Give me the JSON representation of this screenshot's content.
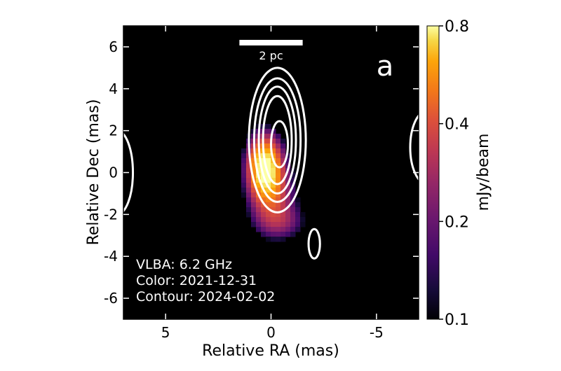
{
  "chart_data": {
    "type": "heatmap",
    "xlabel": "Relative RA (mas)",
    "ylabel": "Relative Dec (mas)",
    "xlim": [
      7,
      -7
    ],
    "ylim": [
      -7,
      7
    ],
    "x_ticks": [
      5,
      0,
      -5
    ],
    "x_tick_labels": [
      "5",
      "0",
      "-5"
    ],
    "y_ticks": [
      6,
      4,
      2,
      0,
      -2,
      -4,
      -6
    ],
    "y_tick_labels": [
      "6",
      "4",
      "2",
      "0",
      "-2",
      "-4",
      "-6"
    ],
    "panel_label": "a",
    "scale_bar": {
      "label": "2 pc",
      "ra_from": 1.5,
      "ra_to": -1.5,
      "dec": 6.2
    },
    "annotation_lines": [
      "VLBA: 6.2 GHz",
      "Color: 2021-12-31",
      "Contour: 2024-02-02"
    ],
    "colorbar": {
      "label": "mJy/beam",
      "range": [
        0.1,
        0.8
      ],
      "ticks": [
        0.8,
        0.4,
        0.2,
        0.1
      ],
      "tick_labels": [
        "0.8",
        "0.4",
        "0.2",
        "0.1"
      ],
      "scale": "log",
      "colormap": "inferno"
    },
    "color_image_components": [
      {
        "ra": 0.3,
        "dec": 0.3,
        "sigma_ra": 0.55,
        "sigma_dec": 1.0,
        "peak": 0.8
      },
      {
        "ra": -0.1,
        "dec": -1.2,
        "sigma_ra": 0.75,
        "sigma_dec": 1.1,
        "peak": 0.3
      },
      {
        "ra": -0.5,
        "dec": -2.4,
        "sigma_ra": 0.9,
        "sigma_dec": 0.6,
        "peak": 0.16
      }
    ],
    "contours": [
      {
        "ra": -0.3,
        "dec": 1.55,
        "half_width_ra": 1.35,
        "half_height_dec": 3.45
      },
      {
        "ra": -0.3,
        "dec": 1.55,
        "half_width_ra": 1.1,
        "half_height_dec": 2.95
      },
      {
        "ra": -0.3,
        "dec": 1.55,
        "half_width_ra": 0.88,
        "half_height_dec": 2.55
      },
      {
        "ra": -0.3,
        "dec": 1.55,
        "half_width_ra": 0.68,
        "half_height_dec": 2.1
      },
      {
        "ra": -0.4,
        "dec": 1.35,
        "half_width_ra": 0.4,
        "half_height_dec": 1.1
      },
      {
        "ra": -2.05,
        "dec": -3.4,
        "half_width_ra": 0.27,
        "half_height_dec": 0.7
      },
      {
        "ra": 7.3,
        "dec": 0.0,
        "half_width_ra": 0.75,
        "half_height_dec": 2.0
      },
      {
        "ra": -7.4,
        "dec": 1.2,
        "half_width_ra": 0.8,
        "half_height_dec": 1.75
      }
    ],
    "colors": {
      "background": "#000000",
      "contour": "#ffffff"
    }
  }
}
